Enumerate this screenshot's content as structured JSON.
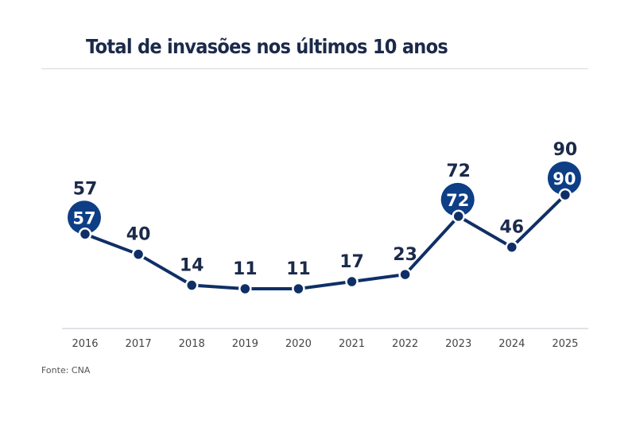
{
  "chart_data": {
    "type": "line",
    "title": "Total de invasões nos últimos 10 anos",
    "categories": [
      "2016",
      "2017",
      "2018",
      "2019",
      "2020",
      "2021",
      "2022",
      "2023",
      "2024",
      "2025"
    ],
    "values": [
      57,
      40,
      14,
      11,
      11,
      17,
      23,
      72,
      46,
      90
    ],
    "highlighted": [
      "2016",
      "2023",
      "2025"
    ],
    "xlabel": "",
    "ylabel": "",
    "ylim": [
      0,
      100
    ],
    "grid": false,
    "source": "Fonte: CNA",
    "colors": {
      "line": "#0f2f66",
      "highlight": "#0d3e86",
      "label": "#1b2a4a"
    }
  }
}
